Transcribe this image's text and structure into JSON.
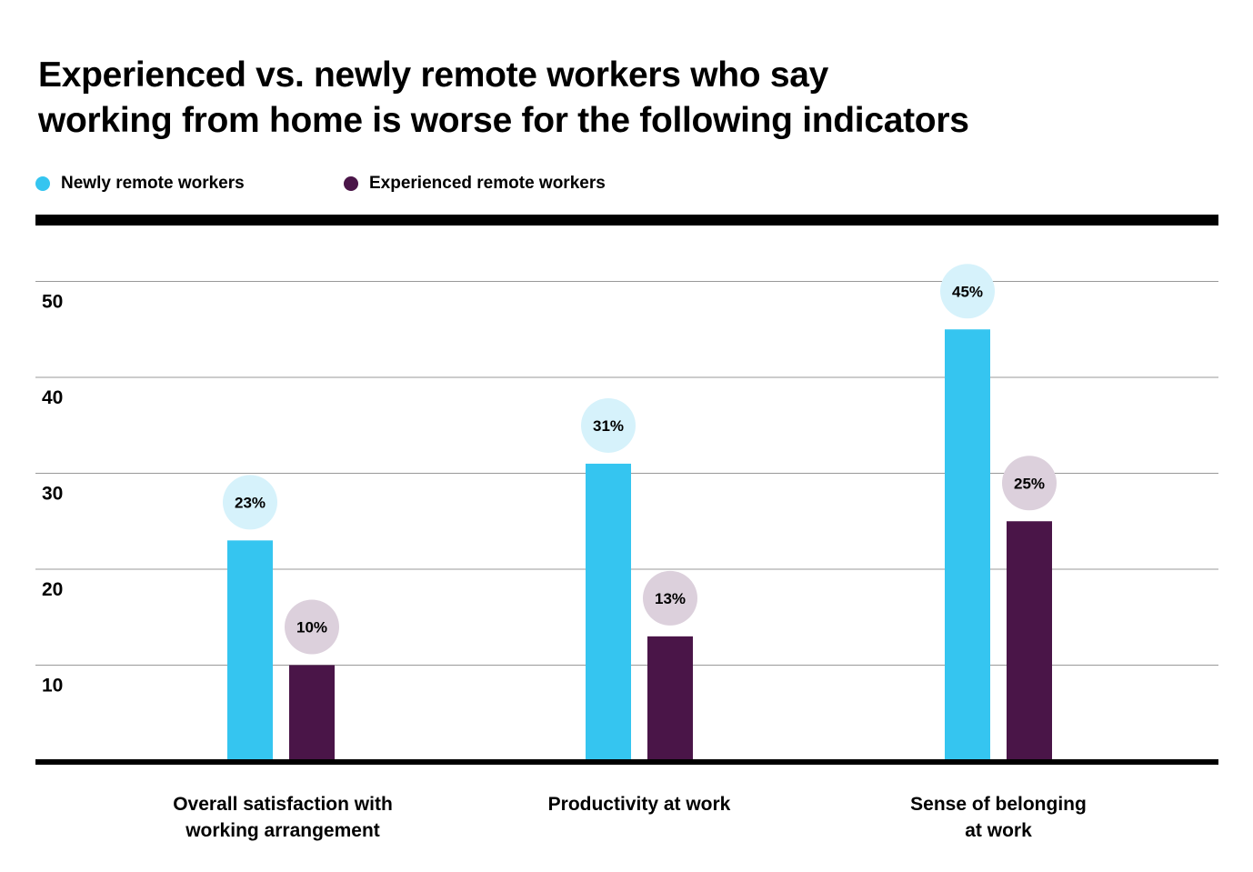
{
  "chart_data": {
    "type": "bar",
    "title": [
      "Experienced vs. newly remote workers who say",
      "working from home is worse for the following indicators"
    ],
    "categories": [
      [
        "Overall satisfaction with",
        "working arrangement"
      ],
      [
        "Productivity at work"
      ],
      [
        "Sense of belonging",
        "at work"
      ]
    ],
    "series": [
      {
        "name": "Newly remote workers",
        "values": [
          23,
          31,
          45
        ],
        "labels": [
          "23%",
          "31%",
          "45%"
        ],
        "color": "#35C5F0",
        "bubble_color": "#D6F2FB"
      },
      {
        "name": "Experienced remote workers",
        "values": [
          10,
          13,
          25
        ],
        "labels": [
          "10%",
          "13%",
          "25%"
        ],
        "color": "#4A1548",
        "bubble_color": "#DCD0DC"
      }
    ],
    "yticks": [
      10,
      20,
      30,
      40,
      50
    ],
    "ylim": [
      0,
      50
    ],
    "grid": true,
    "legend": "top-left",
    "xlabel": "",
    "ylabel": ""
  }
}
